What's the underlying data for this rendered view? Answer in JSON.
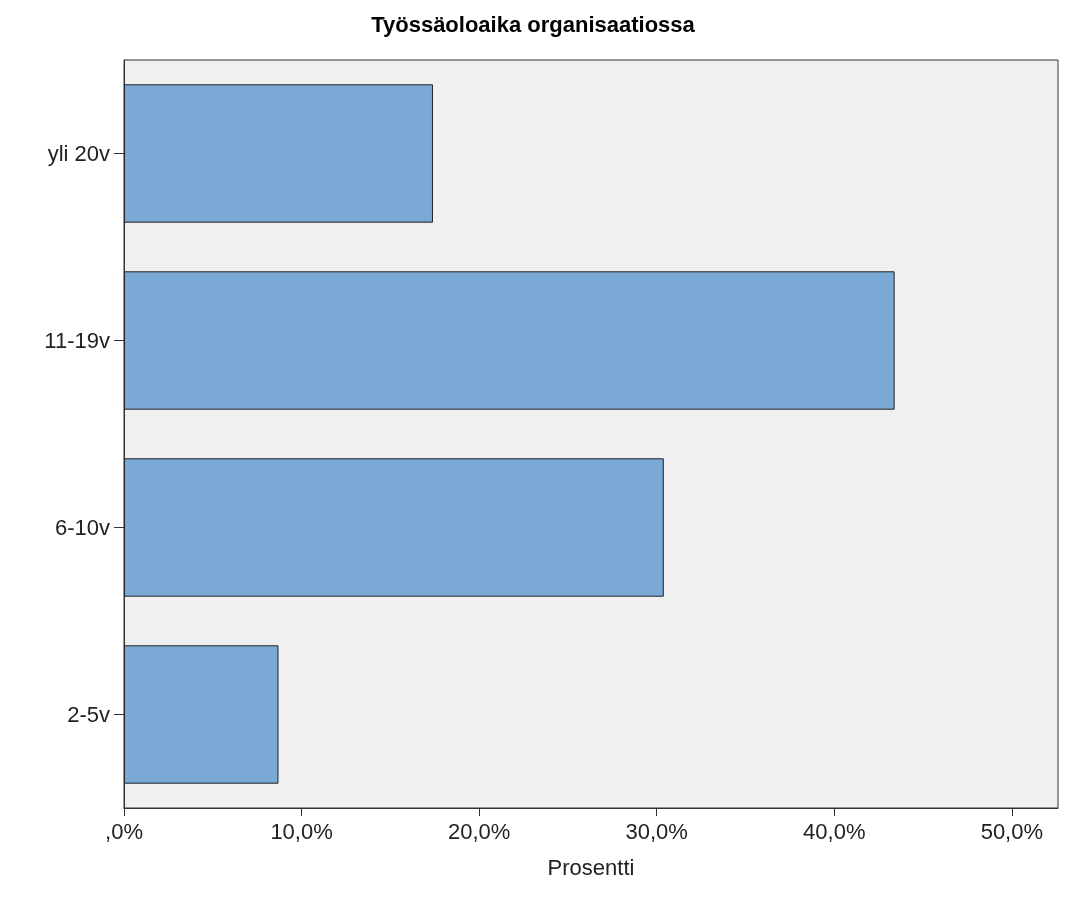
{
  "chart_data": {
    "type": "bar",
    "title": "Työssäoloaika organisaatiossa",
    "xlabel": "Prosentti",
    "orientation": "horizontal",
    "categories": [
      "yli 20v",
      "11-19v",
      "6-10v",
      "2-5v"
    ],
    "values": [
      17.4,
      43.4,
      30.4,
      8.7
    ],
    "color": "#7ba9d6",
    "xlim": [
      0,
      52.6
    ],
    "xticks": [
      {
        "value": 0,
        "label": ",0%"
      },
      {
        "value": 10,
        "label": "10,0%"
      },
      {
        "value": 20,
        "label": "20,0%"
      },
      {
        "value": 30,
        "label": "30,0%"
      },
      {
        "value": 40,
        "label": "40,0%"
      },
      {
        "value": 50,
        "label": "50,0%"
      }
    ],
    "grid": false
  }
}
